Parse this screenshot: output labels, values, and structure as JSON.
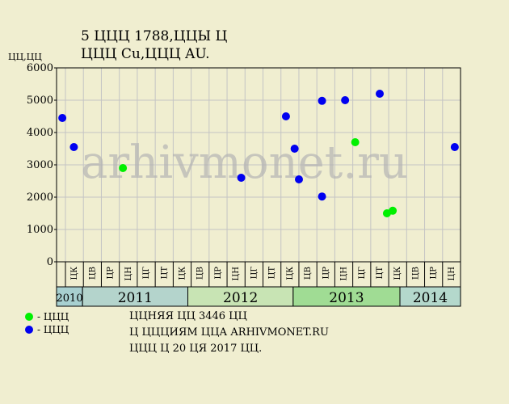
{
  "title_line1": "5 ЦЦЦ 1788,ЦЦЫ Ц",
  "title_line2": "ЦЦЦ Cu,ЦЦЦ AU.",
  "ylabel": "ЦЦ,ЦЦ",
  "watermark": "arhivmonet.ru",
  "legend": [
    {
      "label": "- ЦЦЦ",
      "color": "#00f000"
    },
    {
      "label": "- ЦЦЦ",
      "color": "#0000f0"
    }
  ],
  "notes": [
    "ЦЦНЯЯ ЦЦ 3446 ЦЦ",
    "Ц ЦЦЦИЯМ ЦЦА ARHIVMONET.RU",
    "ЦЦЦ Ц 20 ЦЯ 2017 ЦЦ."
  ],
  "colors": {
    "background": "#f0eed0",
    "series_green": "#00f000",
    "series_blue": "#0000f0",
    "year_2010": "#a8d0d0",
    "year_2011": "#b4d4cc",
    "year_2012": "#c8e4b4",
    "year_2013": "#a0dc94",
    "year_2014": "#b4d8cc"
  },
  "chart_data": {
    "type": "scatter",
    "ylim": [
      0,
      6000
    ],
    "yticks": [
      0,
      1000,
      2000,
      3000,
      4000,
      5000,
      6000
    ],
    "grid": true,
    "x_slot_count": 28,
    "month_labels": [
      "ЦК",
      "ЦВ",
      "ЦР",
      "ЦН",
      "ЦГ",
      "ЦТ",
      "ЦК",
      "ЦВ",
      "ЦР",
      "ЦН",
      "ЦГ",
      "ЦТ",
      "ЦК",
      "ЦВ",
      "ЦР",
      "ЦН",
      "ЦГ",
      "ЦТ",
      "ЦК",
      "ЦВ",
      "ЦР",
      "ЦН"
    ],
    "years": [
      {
        "label": "2010",
        "start": 0,
        "end": 1.8,
        "colorKey": "year_2010",
        "small": true
      },
      {
        "label": "2011",
        "start": 1.8,
        "end": 9.1,
        "colorKey": "year_2011"
      },
      {
        "label": "2012",
        "start": 9.1,
        "end": 16.4,
        "colorKey": "year_2012"
      },
      {
        "label": "2013",
        "start": 16.4,
        "end": 23.8,
        "colorKey": "year_2013"
      },
      {
        "label": "2014",
        "start": 23.8,
        "end": 28,
        "colorKey": "year_2014"
      }
    ],
    "series": [
      {
        "colorKey": "series_green",
        "points": [
          {
            "x": 4.6,
            "y": 2900
          },
          {
            "x": 20.7,
            "y": 3700
          },
          {
            "x": 22.9,
            "y": 1500
          },
          {
            "x": 23.3,
            "y": 1580
          }
        ]
      },
      {
        "colorKey": "series_blue",
        "points": [
          {
            "x": 0.4,
            "y": 4450
          },
          {
            "x": 1.2,
            "y": 3550
          },
          {
            "x": 12.8,
            "y": 2600
          },
          {
            "x": 15.9,
            "y": 4500
          },
          {
            "x": 16.5,
            "y": 3500
          },
          {
            "x": 16.8,
            "y": 2550
          },
          {
            "x": 18.4,
            "y": 4980
          },
          {
            "x": 18.4,
            "y": 2020
          },
          {
            "x": 20.0,
            "y": 5000
          },
          {
            "x": 22.4,
            "y": 5200
          },
          {
            "x": 27.6,
            "y": 3550
          }
        ]
      }
    ]
  }
}
